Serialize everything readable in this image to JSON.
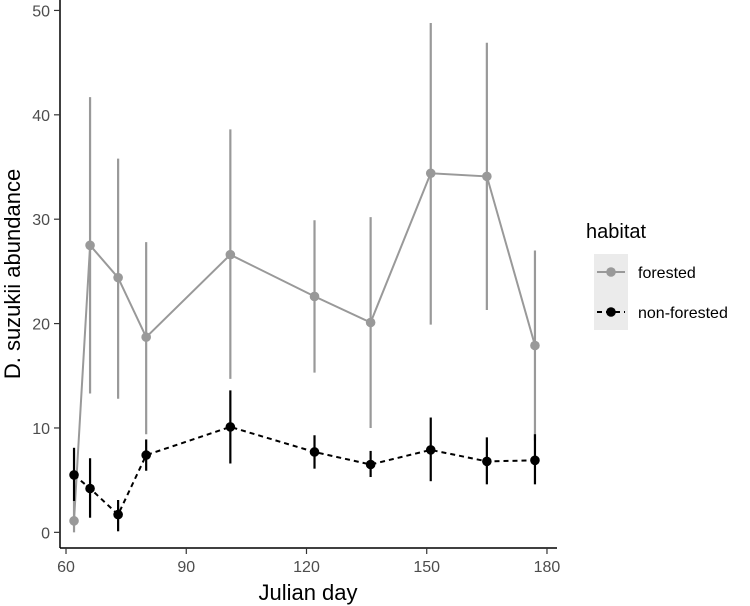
{
  "chart_data": {
    "type": "line",
    "xlabel": "Julian day",
    "ylabel": "D. suzukii abundance",
    "xlim": [
      58.5,
      182.5
    ],
    "ylim": [
      -1.5,
      51
    ],
    "xticks": [
      60,
      90,
      120,
      150,
      180
    ],
    "yticks": [
      0,
      10,
      20,
      30,
      40,
      50
    ],
    "grid": false,
    "legend": {
      "title": "habitat",
      "position": "right"
    },
    "series": [
      {
        "name": "forested",
        "color": "#999999",
        "line": "solid",
        "x": [
          62,
          66,
          73,
          80,
          101,
          122,
          136,
          151,
          165,
          177
        ],
        "y": [
          1.1,
          27.5,
          24.4,
          18.7,
          26.6,
          22.6,
          20.1,
          34.4,
          34.1,
          17.9
        ],
        "ylow": [
          0.0,
          13.3,
          12.8,
          9.4,
          14.7,
          15.3,
          10.0,
          19.9,
          21.3,
          8.8
        ],
        "yhigh": [
          3.0,
          41.7,
          35.8,
          27.8,
          38.6,
          29.9,
          30.2,
          48.8,
          46.9,
          27.0
        ]
      },
      {
        "name": "non-forested",
        "color": "#000000",
        "line": "dashed",
        "x": [
          62,
          66,
          73,
          80,
          101,
          122,
          136,
          151,
          165,
          177
        ],
        "y": [
          5.5,
          4.2,
          1.7,
          7.4,
          10.1,
          7.7,
          6.5,
          7.9,
          6.8,
          6.9
        ],
        "ylow": [
          3.0,
          1.4,
          0.1,
          5.9,
          6.6,
          6.1,
          5.3,
          4.9,
          4.6,
          4.6
        ],
        "yhigh": [
          8.1,
          7.1,
          3.1,
          8.9,
          13.6,
          9.3,
          7.8,
          11.0,
          9.1,
          9.4
        ]
      }
    ]
  }
}
